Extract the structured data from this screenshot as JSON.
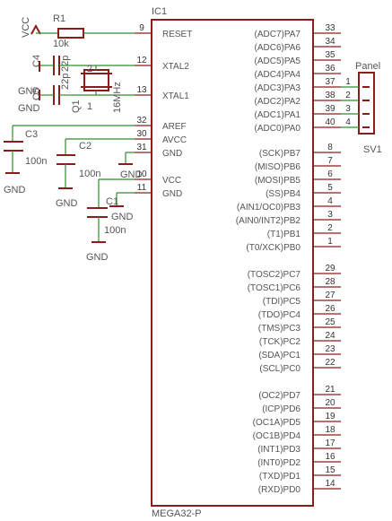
{
  "ic": {
    "ref": "IC1",
    "value": "MEGA32-P",
    "left_pins": [
      {
        "name": "RESET",
        "num": "9"
      },
      {
        "name": "XTAL2",
        "num": "12"
      },
      {
        "name": "XTAL1",
        "num": "13"
      },
      {
        "name": "AREF",
        "num": "32"
      },
      {
        "name": "AVCC",
        "num": "30"
      },
      {
        "name": "GND",
        "num": "31"
      },
      {
        "name": "VCC",
        "num": "10"
      },
      {
        "name": "GND",
        "num": "11"
      }
    ],
    "right_pins": [
      {
        "name": "(ADC7)PA7",
        "num": "33"
      },
      {
        "name": "(ADC6)PA6",
        "num": "34"
      },
      {
        "name": "(ADC5)PA5",
        "num": "35"
      },
      {
        "name": "(ADC4)PA4",
        "num": "36"
      },
      {
        "name": "(ADC3)PA3",
        "num": "37"
      },
      {
        "name": "(ADC2)PA2",
        "num": "38"
      },
      {
        "name": "(ADC1)PA1",
        "num": "39"
      },
      {
        "name": "(ADC0)PA0",
        "num": "40"
      },
      {
        "name": "(SCK)PB7",
        "num": "8"
      },
      {
        "name": "(MISO)PB6",
        "num": "7"
      },
      {
        "name": "(MOSI)PB5",
        "num": "6"
      },
      {
        "name": "(SS)PB4",
        "num": "5"
      },
      {
        "name": "(AIN1/OC0)PB3",
        "num": "4"
      },
      {
        "name": "(AIN0/INT2)PB2",
        "num": "3"
      },
      {
        "name": "(T1)PB1",
        "num": "2"
      },
      {
        "name": "(T0/XCK)PB0",
        "num": "1"
      },
      {
        "name": "(TOSC2)PC7",
        "num": "29"
      },
      {
        "name": "(TOSC1)PC6",
        "num": "28"
      },
      {
        "name": "(TDI)PC5",
        "num": "27"
      },
      {
        "name": "(TDO)PC4",
        "num": "26"
      },
      {
        "name": "(TMS)PC3",
        "num": "25"
      },
      {
        "name": "(TCK)PC2",
        "num": "24"
      },
      {
        "name": "(SDA)PC1",
        "num": "23"
      },
      {
        "name": "(SCL)PC0",
        "num": "22"
      },
      {
        "name": "(OC2)PD7",
        "num": "21"
      },
      {
        "name": "(ICP)PD6",
        "num": "20"
      },
      {
        "name": "(OC1A)PD5",
        "num": "19"
      },
      {
        "name": "(OC1B)PD4",
        "num": "18"
      },
      {
        "name": "(INT1)PD3",
        "num": "17"
      },
      {
        "name": "(INT0)PD2",
        "num": "16"
      },
      {
        "name": "(TXD)PD1",
        "num": "15"
      },
      {
        "name": "(RXD)PD0",
        "num": "14"
      }
    ]
  },
  "connector": {
    "name": "Panel",
    "ref": "SV1",
    "pins": [
      "1",
      "2",
      "3",
      "4"
    ]
  },
  "parts": {
    "vcc": "VCC",
    "r1_ref": "R1",
    "r1_value": "10k",
    "c4_ref": "C4",
    "c4_value": "22p",
    "c5_ref": "C5",
    "c5_value": "22p",
    "q1_ref": "Q1",
    "q1_value": "16MHz",
    "q1_pin1": "1",
    "q1_pin2": "2",
    "c3_ref": "C3",
    "c3_value": "100n",
    "c2_ref": "C2",
    "c2_value": "100n",
    "c1_ref": "C1",
    "c1_value": "100n",
    "gnd": "GND"
  }
}
